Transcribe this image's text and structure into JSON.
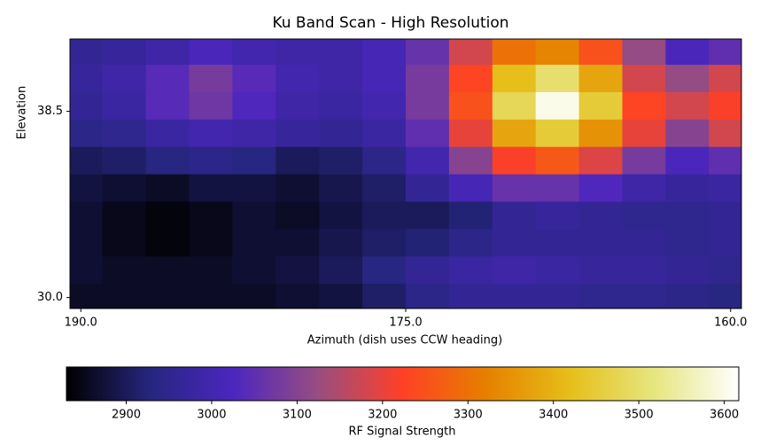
{
  "chart_data": {
    "type": "heatmap",
    "title": "Ku Band Scan - High Resolution",
    "xlabel": "Azimuth (dish uses CCW heading)",
    "ylabel": "Elevation",
    "colorbar_label": "RF Signal Strength",
    "x": [
      190,
      188,
      186,
      184,
      182,
      180,
      178,
      176,
      174,
      172,
      170,
      168,
      166,
      164,
      162,
      160
    ],
    "y": [
      41.25,
      40,
      38.75,
      37.5,
      36.25,
      35,
      33.75,
      32.5,
      31.25,
      30
    ],
    "values": [
      [
        2960,
        2970,
        2990,
        3020,
        3000,
        2990,
        2990,
        3010,
        3060,
        3180,
        3300,
        3330,
        3250,
        3120,
        3020,
        3050
      ],
      [
        2970,
        2990,
        3040,
        3080,
        3040,
        3000,
        2990,
        3010,
        3080,
        3230,
        3420,
        3500,
        3380,
        3180,
        3120,
        3180
      ],
      [
        2960,
        2980,
        3040,
        3070,
        3030,
        2990,
        2980,
        3000,
        3080,
        3250,
        3480,
        3600,
        3450,
        3230,
        3180,
        3220
      ],
      [
        2940,
        2950,
        2980,
        3000,
        2990,
        2970,
        2960,
        2980,
        3050,
        3200,
        3380,
        3450,
        3350,
        3200,
        3100,
        3180
      ],
      [
        2900,
        2910,
        2930,
        2940,
        2930,
        2900,
        2910,
        2940,
        3000,
        3100,
        3220,
        3260,
        3190,
        3080,
        3020,
        3050
      ],
      [
        2880,
        2870,
        2860,
        2880,
        2880,
        2870,
        2890,
        2910,
        2960,
        3010,
        3060,
        3060,
        3030,
        2990,
        2970,
        2980
      ],
      [
        2870,
        2850,
        2840,
        2850,
        2870,
        2860,
        2880,
        2900,
        2900,
        2920,
        2960,
        2970,
        2960,
        2950,
        2950,
        2960
      ],
      [
        2870,
        2850,
        2840,
        2850,
        2870,
        2870,
        2890,
        2910,
        2920,
        2940,
        2960,
        2960,
        2960,
        2960,
        2950,
        2960
      ],
      [
        2870,
        2860,
        2860,
        2860,
        2870,
        2880,
        2900,
        2930,
        2960,
        2980,
        2990,
        2980,
        2970,
        2970,
        2960,
        2950
      ],
      [
        2860,
        2860,
        2860,
        2860,
        2860,
        2870,
        2880,
        2910,
        2940,
        2960,
        2960,
        2960,
        2950,
        2950,
        2940,
        2930
      ]
    ],
    "xlim": [
      190.5,
      159.5
    ],
    "ylim": [
      29.5,
      41.8
    ],
    "xticks": [
      {
        "value": 190,
        "label": "190.0"
      },
      {
        "value": 175,
        "label": "175.0"
      },
      {
        "value": 160,
        "label": "160.0"
      }
    ],
    "yticks": [
      {
        "value": 30,
        "label": "30.0"
      },
      {
        "value": 38.5,
        "label": "38.5"
      }
    ],
    "clim": [
      2830,
      3617
    ],
    "cticks": [
      2900,
      3000,
      3100,
      3200,
      3300,
      3400,
      3500,
      3600
    ],
    "colormap": [
      "#000000",
      "#262680",
      "#4d26bf",
      "#994d80",
      "#ff4026",
      "#e68000",
      "#e6bf1a",
      "#e6e680",
      "#ffffff"
    ]
  }
}
